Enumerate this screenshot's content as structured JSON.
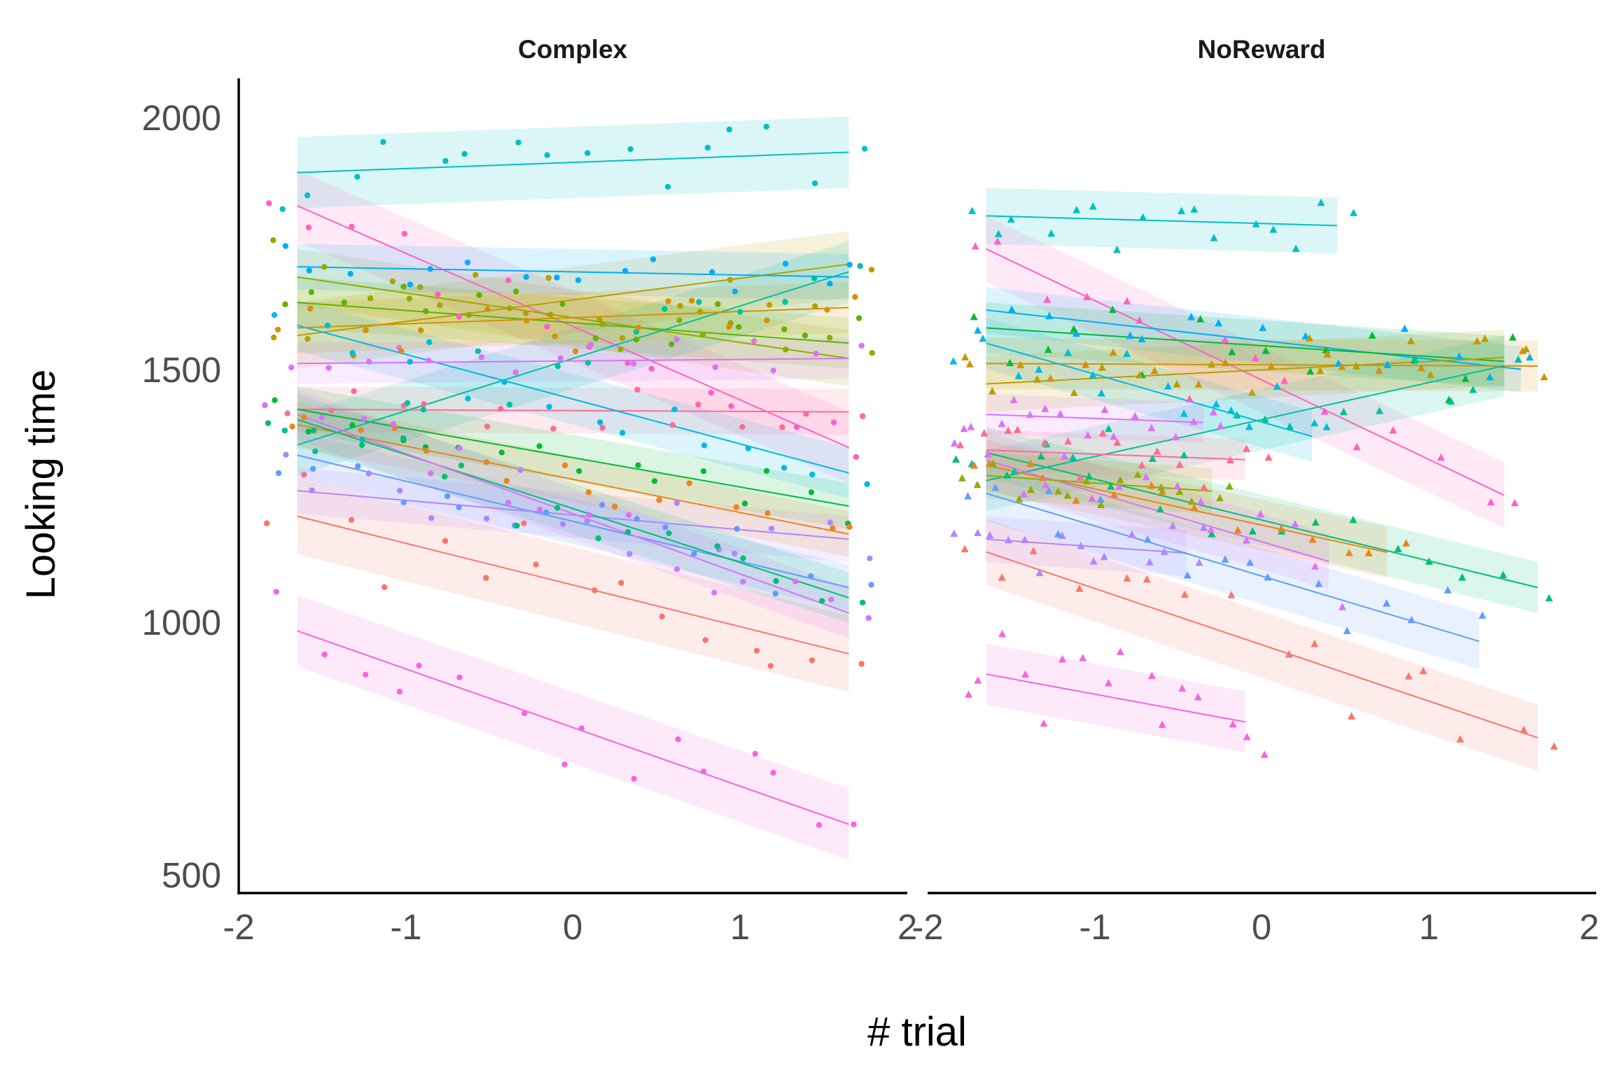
{
  "chart_data": {
    "type": "scatter",
    "xlabel": "# trial",
    "ylabel": "Looking time",
    "ylim": [
      480,
      2080
    ],
    "yticks": [
      500,
      1000,
      1500,
      2000
    ],
    "xlim": [
      -2,
      2
    ],
    "xticks": [
      -2,
      -1,
      0,
      1,
      2
    ],
    "xtick_labels": [
      "-2",
      "-1",
      "0",
      "1",
      "2"
    ],
    "grid": false,
    "legend": "none",
    "palette": [
      "#F8766D",
      "#E7861B",
      "#D39200",
      "#B79F00",
      "#93AA00",
      "#5EB300",
      "#00BA38",
      "#00BF74",
      "#00C19F",
      "#00BFC4",
      "#00B9E3",
      "#00ADFA",
      "#619CFF",
      "#AE87FF",
      "#DB72FB",
      "#F564E3",
      "#FF61C3",
      "#FF6C91"
    ],
    "panels": [
      {
        "title": "Complex",
        "marker": "circle",
        "x_range": [
          -1.65,
          1.65
        ],
        "series": [
          {
            "color": "#F8766D",
            "fit": [
              1220,
              950
            ],
            "band": 75
          },
          {
            "color": "#F564E3",
            "fit": [
              995,
              615
            ],
            "band": 70
          },
          {
            "color": "#00BFC4",
            "fit": [
              1895,
              1935
            ],
            "band": 70
          },
          {
            "color": "#FF61C3",
            "fit": [
              1830,
              1355
            ],
            "band": 70
          },
          {
            "color": "#FF6C91",
            "fit": [
              1430,
              1425
            ],
            "band": 45
          },
          {
            "color": "#B79F00",
            "fit": [
              1575,
              1715
            ],
            "band": 65
          },
          {
            "color": "#93AA00",
            "fit": [
              1690,
              1530
            ],
            "band": 55
          },
          {
            "color": "#5EB300",
            "fit": [
              1640,
              1560
            ],
            "band": 50
          },
          {
            "color": "#00BA38",
            "fit": [
              1430,
              1240
            ],
            "band": 45
          },
          {
            "color": "#00C19F",
            "fit": [
              1360,
              1700
            ],
            "band": 60
          },
          {
            "color": "#00B9E3",
            "fit": [
              1595,
              1305
            ],
            "band": 50
          },
          {
            "color": "#00ADFA",
            "fit": [
              1710,
              1690
            ],
            "band": 45
          },
          {
            "color": "#619CFF",
            "fit": [
              1340,
              1080
            ],
            "band": 45
          },
          {
            "color": "#AE87FF",
            "fit": [
              1270,
              1175
            ],
            "band": 45
          },
          {
            "color": "#DB72FB",
            "fit": [
              1520,
              1530
            ],
            "band": 40
          },
          {
            "color": "#E7861B",
            "fit": [
              1400,
              1185
            ],
            "band": 45
          },
          {
            "color": "#D39200",
            "fit": [
              1590,
              1630
            ],
            "band": 50
          },
          {
            "color": "#00BF74",
            "fit": [
              1410,
              1060
            ],
            "band": 50
          },
          {
            "color": "#DB72FB",
            "fit": [
              1420,
              1030
            ],
            "band": 50
          }
        ]
      },
      {
        "title": "NoReward",
        "marker": "triangle",
        "x_range": [
          -1.65,
          1.65
        ],
        "series": [
          {
            "color": "#00BFC4",
            "fit": [
              1810,
              1780
            ],
            "band": 55,
            "x_end": 0.45
          },
          {
            "color": "#FF61C3",
            "fit": [
              1745,
              1230
            ],
            "band": 65,
            "x_end": 1.45
          },
          {
            "color": "#F8766D",
            "fit": [
              1150,
              785
            ],
            "band": 65
          },
          {
            "color": "#F564E3",
            "fit": [
              910,
              710
            ],
            "band": 60,
            "x_end": -0.1
          },
          {
            "color": "#00ADFA",
            "fit": [
              1625,
              1505
            ],
            "band": 45,
            "x_end": 1.55
          },
          {
            "color": "#00BA38",
            "fit": [
              1590,
              1520
            ],
            "band": 50,
            "x_end": 1.45
          },
          {
            "color": "#D39200",
            "fit": [
              1520,
              1515
            ],
            "band": 50
          },
          {
            "color": "#B79F00",
            "fit": [
              1480,
              1535
            ],
            "band": 55,
            "x_end": 1.45
          },
          {
            "color": "#00C19F",
            "fit": [
              1290,
              1530
            ],
            "band": 60,
            "x_end": 1.45
          },
          {
            "color": "#00B9E3",
            "fit": [
              1560,
              1250
            ],
            "band": 50,
            "x_end": 0.3
          },
          {
            "color": "#00BF74",
            "fit": [
              1345,
              1080
            ],
            "band": 50
          },
          {
            "color": "#E7861B",
            "fit": [
              1320,
              1085
            ],
            "band": 50,
            "x_end": 0.75
          },
          {
            "color": "#DB72FB",
            "fit": [
              1420,
              1380
            ],
            "band": 40,
            "x_end": -0.35
          },
          {
            "color": "#FF6C91",
            "fit": [
              1350,
              1310
            ],
            "band": 40,
            "x_end": -0.1
          },
          {
            "color": "#AE87FF",
            "fit": [
              1175,
              1100
            ],
            "band": 45,
            "x_end": -0.45
          },
          {
            "color": "#619CFF",
            "fit": [
              1265,
              940
            ],
            "band": 55,
            "x_end": 1.3
          },
          {
            "color": "#DB72FB",
            "fit": [
              1330,
              1010
            ],
            "band": 55,
            "x_end": 0.4
          },
          {
            "color": "#93AA00",
            "fit": [
              1300,
              1225
            ],
            "band": 45,
            "x_end": -0.3
          }
        ]
      }
    ]
  }
}
